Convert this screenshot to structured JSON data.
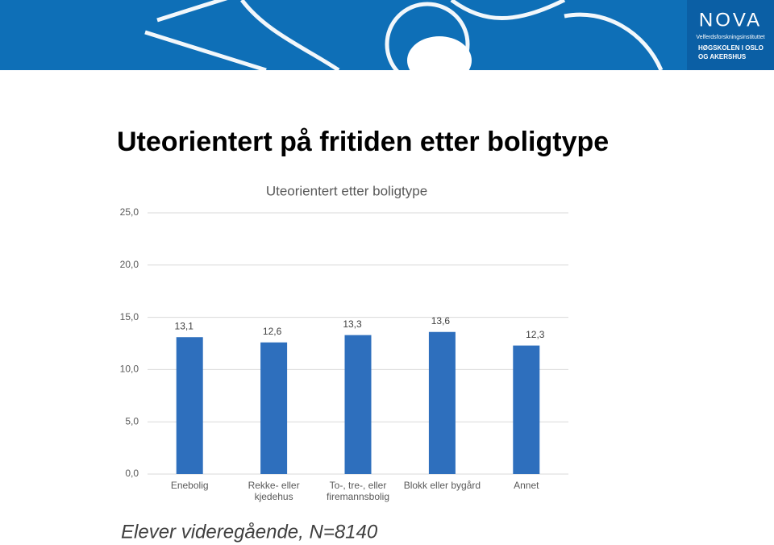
{
  "slide": {
    "title": "Uteorientert på fritiden etter boligtype",
    "footnote": "Elever videregående, N=8140",
    "logo": {
      "name": "NOVA",
      "institute": "Velferdsforskningsinstituttet",
      "school_line1": "HØGSKOLEN I OSLO",
      "school_line2": "OG AKERSHUS"
    }
  },
  "chart_data": {
    "type": "bar",
    "title": "Uteorientert etter boligtype",
    "categories": [
      "Enebolig",
      "Rekke- eller kjedehus",
      "To-, tre-, eller firemannsbolig",
      "Blokk eller bygård",
      "Annet"
    ],
    "values": [
      13.1,
      12.6,
      13.3,
      13.6,
      12.3
    ],
    "value_labels": [
      "13,1",
      "12,6",
      "13,3",
      "13,6",
      "12,3"
    ],
    "color": "#2e6fbd",
    "ylim": [
      0,
      25
    ],
    "yticks": [
      {
        "value": 0,
        "label": "0,0"
      },
      {
        "value": 5,
        "label": "5,0"
      },
      {
        "value": 10,
        "label": "10,0"
      },
      {
        "value": 15,
        "label": "15,0"
      },
      {
        "value": 20,
        "label": "20,0"
      },
      {
        "value": 25,
        "label": "25,0"
      }
    ],
    "grid": true
  }
}
